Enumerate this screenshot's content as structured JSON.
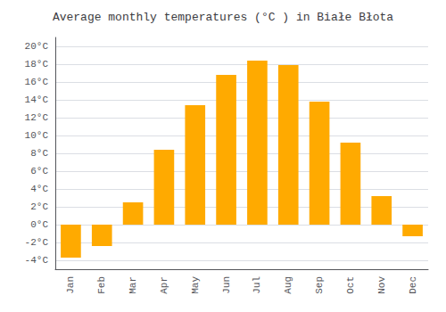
{
  "chart_data": {
    "type": "bar",
    "title": "Average monthly temperatures (°C ) in Białe Błota",
    "categories": [
      "Jan",
      "Feb",
      "Mar",
      "Apr",
      "May",
      "Jun",
      "Jul",
      "Aug",
      "Sep",
      "Oct",
      "Nov",
      "Dec"
    ],
    "values": [
      -3.7,
      -2.4,
      2.5,
      8.4,
      13.4,
      16.8,
      18.4,
      17.9,
      13.8,
      9.2,
      3.2,
      -1.3
    ],
    "color": "#FFAA00",
    "ylim": [
      -5,
      21
    ],
    "yticks": [
      {
        "value": -4,
        "label": "-4°C"
      },
      {
        "value": -2,
        "label": "-2°C"
      },
      {
        "value": 0,
        "label": "0°C"
      },
      {
        "value": 2,
        "label": "2°C"
      },
      {
        "value": 4,
        "label": "4°C"
      },
      {
        "value": 6,
        "label": "6°C"
      },
      {
        "value": 8,
        "label": "8°C"
      },
      {
        "value": 10,
        "label": "10°C"
      },
      {
        "value": 12,
        "label": "12°C"
      },
      {
        "value": 14,
        "label": "14°C"
      },
      {
        "value": 16,
        "label": "16°C"
      },
      {
        "value": 18,
        "label": "18°C"
      },
      {
        "value": 20,
        "label": "20°C"
      }
    ],
    "grid": true
  }
}
